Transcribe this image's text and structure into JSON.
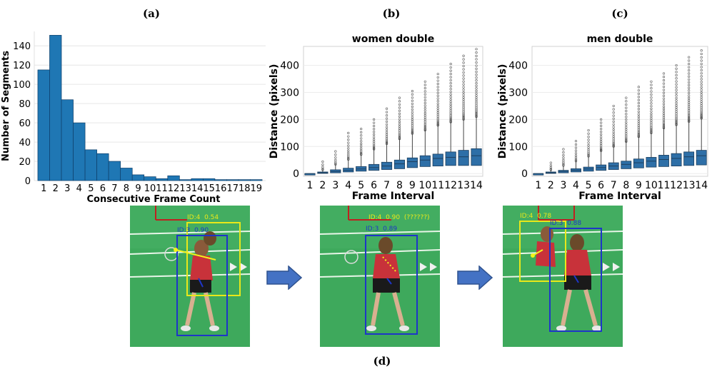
{
  "panel_labels": {
    "a": "(a)",
    "b": "(b)",
    "c": "(c)",
    "d": "(d)"
  },
  "chart_data": [
    {
      "type": "bar",
      "panel": "(a)",
      "title": "",
      "xlabel": "Consecutive Frame Count",
      "ylabel": "Number of Segments",
      "categories": [
        "1",
        "2",
        "3",
        "4",
        "5",
        "6",
        "7",
        "8",
        "9",
        "10",
        "11",
        "12",
        "13",
        "14",
        "15",
        "16",
        "17",
        "18",
        "19"
      ],
      "values": [
        115,
        151,
        84,
        60,
        32,
        28,
        20,
        13,
        6,
        4,
        2,
        5,
        1,
        2,
        2,
        1,
        1,
        1,
        1
      ],
      "ylim": [
        0,
        155
      ],
      "yticks": [
        0,
        20,
        40,
        60,
        80,
        100,
        120,
        140
      ],
      "grid": true,
      "color": "#1f77b4"
    },
    {
      "type": "box",
      "panel": "(b)",
      "title": "women double",
      "xlabel": "Frame Interval",
      "ylabel": "Distance (pixels)",
      "categories": [
        "1",
        "2",
        "3",
        "4",
        "5",
        "6",
        "7",
        "8",
        "9",
        "10",
        "11",
        "12",
        "13",
        "14"
      ],
      "q1": [
        0,
        1,
        3,
        6,
        9,
        12,
        15,
        18,
        22,
        26,
        28,
        30,
        30,
        30
      ],
      "median": [
        0,
        3,
        8,
        12,
        17,
        22,
        28,
        36,
        44,
        50,
        56,
        60,
        62,
        66
      ],
      "q3": [
        0,
        6,
        14,
        20,
        26,
        34,
        42,
        50,
        58,
        66,
        72,
        80,
        86,
        92
      ],
      "whisker_high": [
        0,
        14,
        34,
        52,
        70,
        90,
        110,
        128,
        148,
        160,
        178,
        190,
        200,
        210
      ],
      "outlier_max": [
        0,
        44,
        82,
        150,
        165,
        200,
        240,
        280,
        305,
        340,
        368,
        405,
        435,
        460
      ],
      "ylim": [
        -10,
        470
      ],
      "yticks": [
        0,
        100,
        200,
        300,
        400
      ],
      "grid": true,
      "color": "#2e6fa7"
    },
    {
      "type": "box",
      "panel": "(c)",
      "title": "men double",
      "xlabel": "Frame Interval",
      "ylabel": "Distance (pixels)",
      "categories": [
        "1",
        "2",
        "3",
        "4",
        "5",
        "6",
        "7",
        "8",
        "9",
        "10",
        "11",
        "12",
        "13",
        "14"
      ],
      "q1": [
        0,
        1,
        3,
        6,
        9,
        12,
        15,
        18,
        21,
        24,
        26,
        28,
        30,
        32
      ],
      "median": [
        0,
        3,
        8,
        12,
        17,
        22,
        28,
        34,
        40,
        46,
        52,
        56,
        62,
        66
      ],
      "q3": [
        0,
        6,
        12,
        18,
        24,
        32,
        40,
        46,
        54,
        60,
        68,
        74,
        80,
        86
      ],
      "whisker_high": [
        0,
        14,
        30,
        46,
        64,
        84,
        100,
        118,
        136,
        150,
        168,
        180,
        192,
        204
      ],
      "outlier_max": [
        0,
        40,
        90,
        120,
        160,
        200,
        250,
        280,
        320,
        340,
        370,
        400,
        430,
        455
      ],
      "ylim": [
        -10,
        470
      ],
      "yticks": [
        0,
        100,
        200,
        300,
        400
      ],
      "grid": true,
      "color": "#2e6fa7"
    }
  ],
  "frames": [
    {
      "label_yellow": "ID:4  0.54",
      "label_blue": "ID:3  0.90"
    },
    {
      "label_yellow": "ID:4  0.90  (??????)",
      "label_blue": "ID:3  0.89"
    },
    {
      "label_yellow": "ID:4  0.78",
      "label_blue": "ID:3  0.88"
    }
  ],
  "colors": {
    "bar": "#1f77b4",
    "box": "#2e6fa7",
    "court": "#3aa85a",
    "arrow": "#4472c4",
    "track_yellow": "#f2f21a",
    "track_blue": "#1e35c8"
  }
}
